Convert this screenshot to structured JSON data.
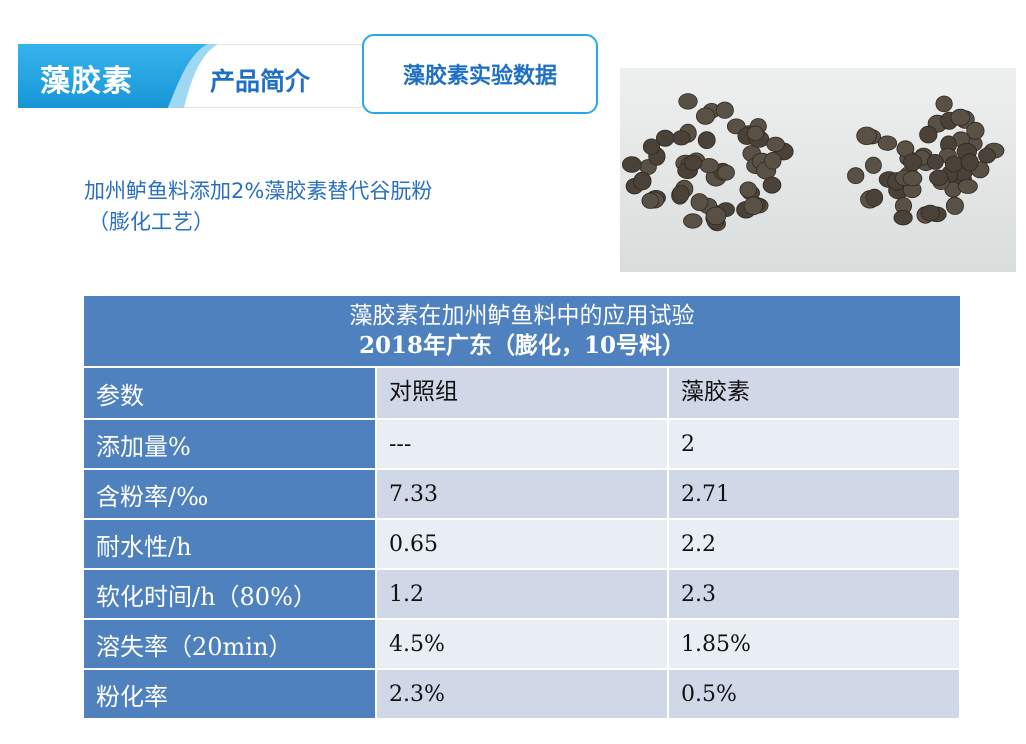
{
  "header": {
    "brand": "藻胶素",
    "intro_tab": "产品简介",
    "data_tab": "藻胶素实验数据"
  },
  "subtitle": {
    "line1": "加州鲈鱼料添加2%藻胶素替代谷朊粉",
    "line2": "（膨化工艺）"
  },
  "photo": {
    "left_pile_count": 58,
    "right_pile_count": 52,
    "pellet_color": "#4a4238"
  },
  "table": {
    "title_line1": "藻胶素在加州鲈鱼料中的应用试验",
    "title_line2": "2018年广东（膨化，10号料）",
    "headers": [
      "参数",
      "对照组",
      "藻胶素"
    ],
    "rows": [
      {
        "param": "添加量%",
        "control": "---",
        "algin": "2"
      },
      {
        "param": "含粉率/‰",
        "control": "7.33",
        "algin": "2.71"
      },
      {
        "param": "耐水性/h",
        "control": "0.65",
        "algin": "2.2"
      },
      {
        "param": "软化时间/h（80%）",
        "control": "1.2",
        "algin": "2.3"
      },
      {
        "param": "溶失率（20min）",
        "control": "4.5%",
        "algin": "1.85%"
      },
      {
        "param": "粉化率",
        "control": "2.3%",
        "algin": "0.5%"
      }
    ]
  },
  "colors": {
    "accent_blue": "#2aa7e6",
    "table_blue": "#4e81be",
    "text_blue": "#2a6fc0"
  }
}
